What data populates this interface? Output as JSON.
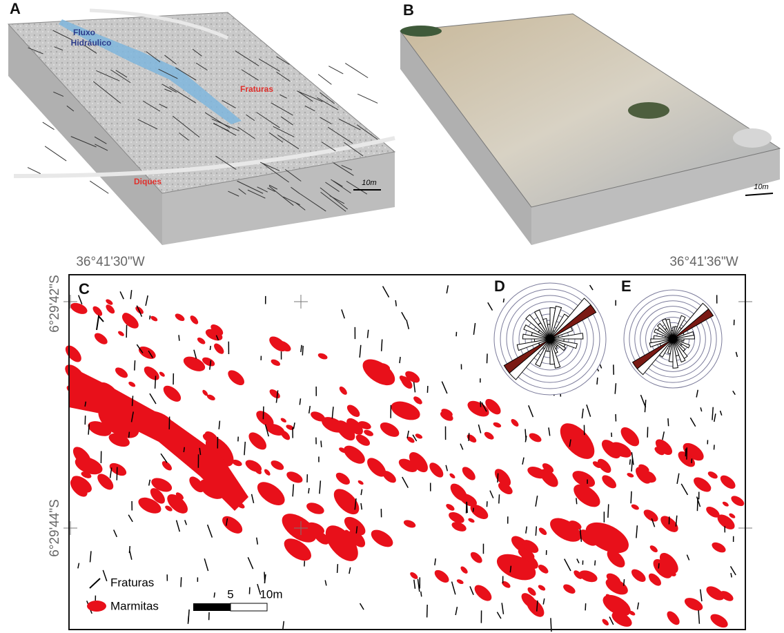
{
  "panel_a": {
    "label": "A",
    "flow_label": [
      "Fluxo",
      "Hidráulico"
    ],
    "fractures_label": "Fraturas",
    "dikes_label": "Diques",
    "scale_label": "10m"
  },
  "panel_b": {
    "label": "B",
    "scale_label": "10m"
  },
  "panel_c": {
    "label": "C",
    "longitudes": [
      "36°41'30\"W",
      "36°41'36\"W"
    ],
    "latitudes": [
      "6°29'42\"S",
      "6°29'44\"S"
    ],
    "legend": {
      "fractures": "Fraturas",
      "potholes": "Marmitas"
    },
    "scale_bar": [
      "5",
      "10m"
    ]
  },
  "panel_d": {
    "label": "D"
  },
  "panel_e": {
    "label": "E"
  }
}
